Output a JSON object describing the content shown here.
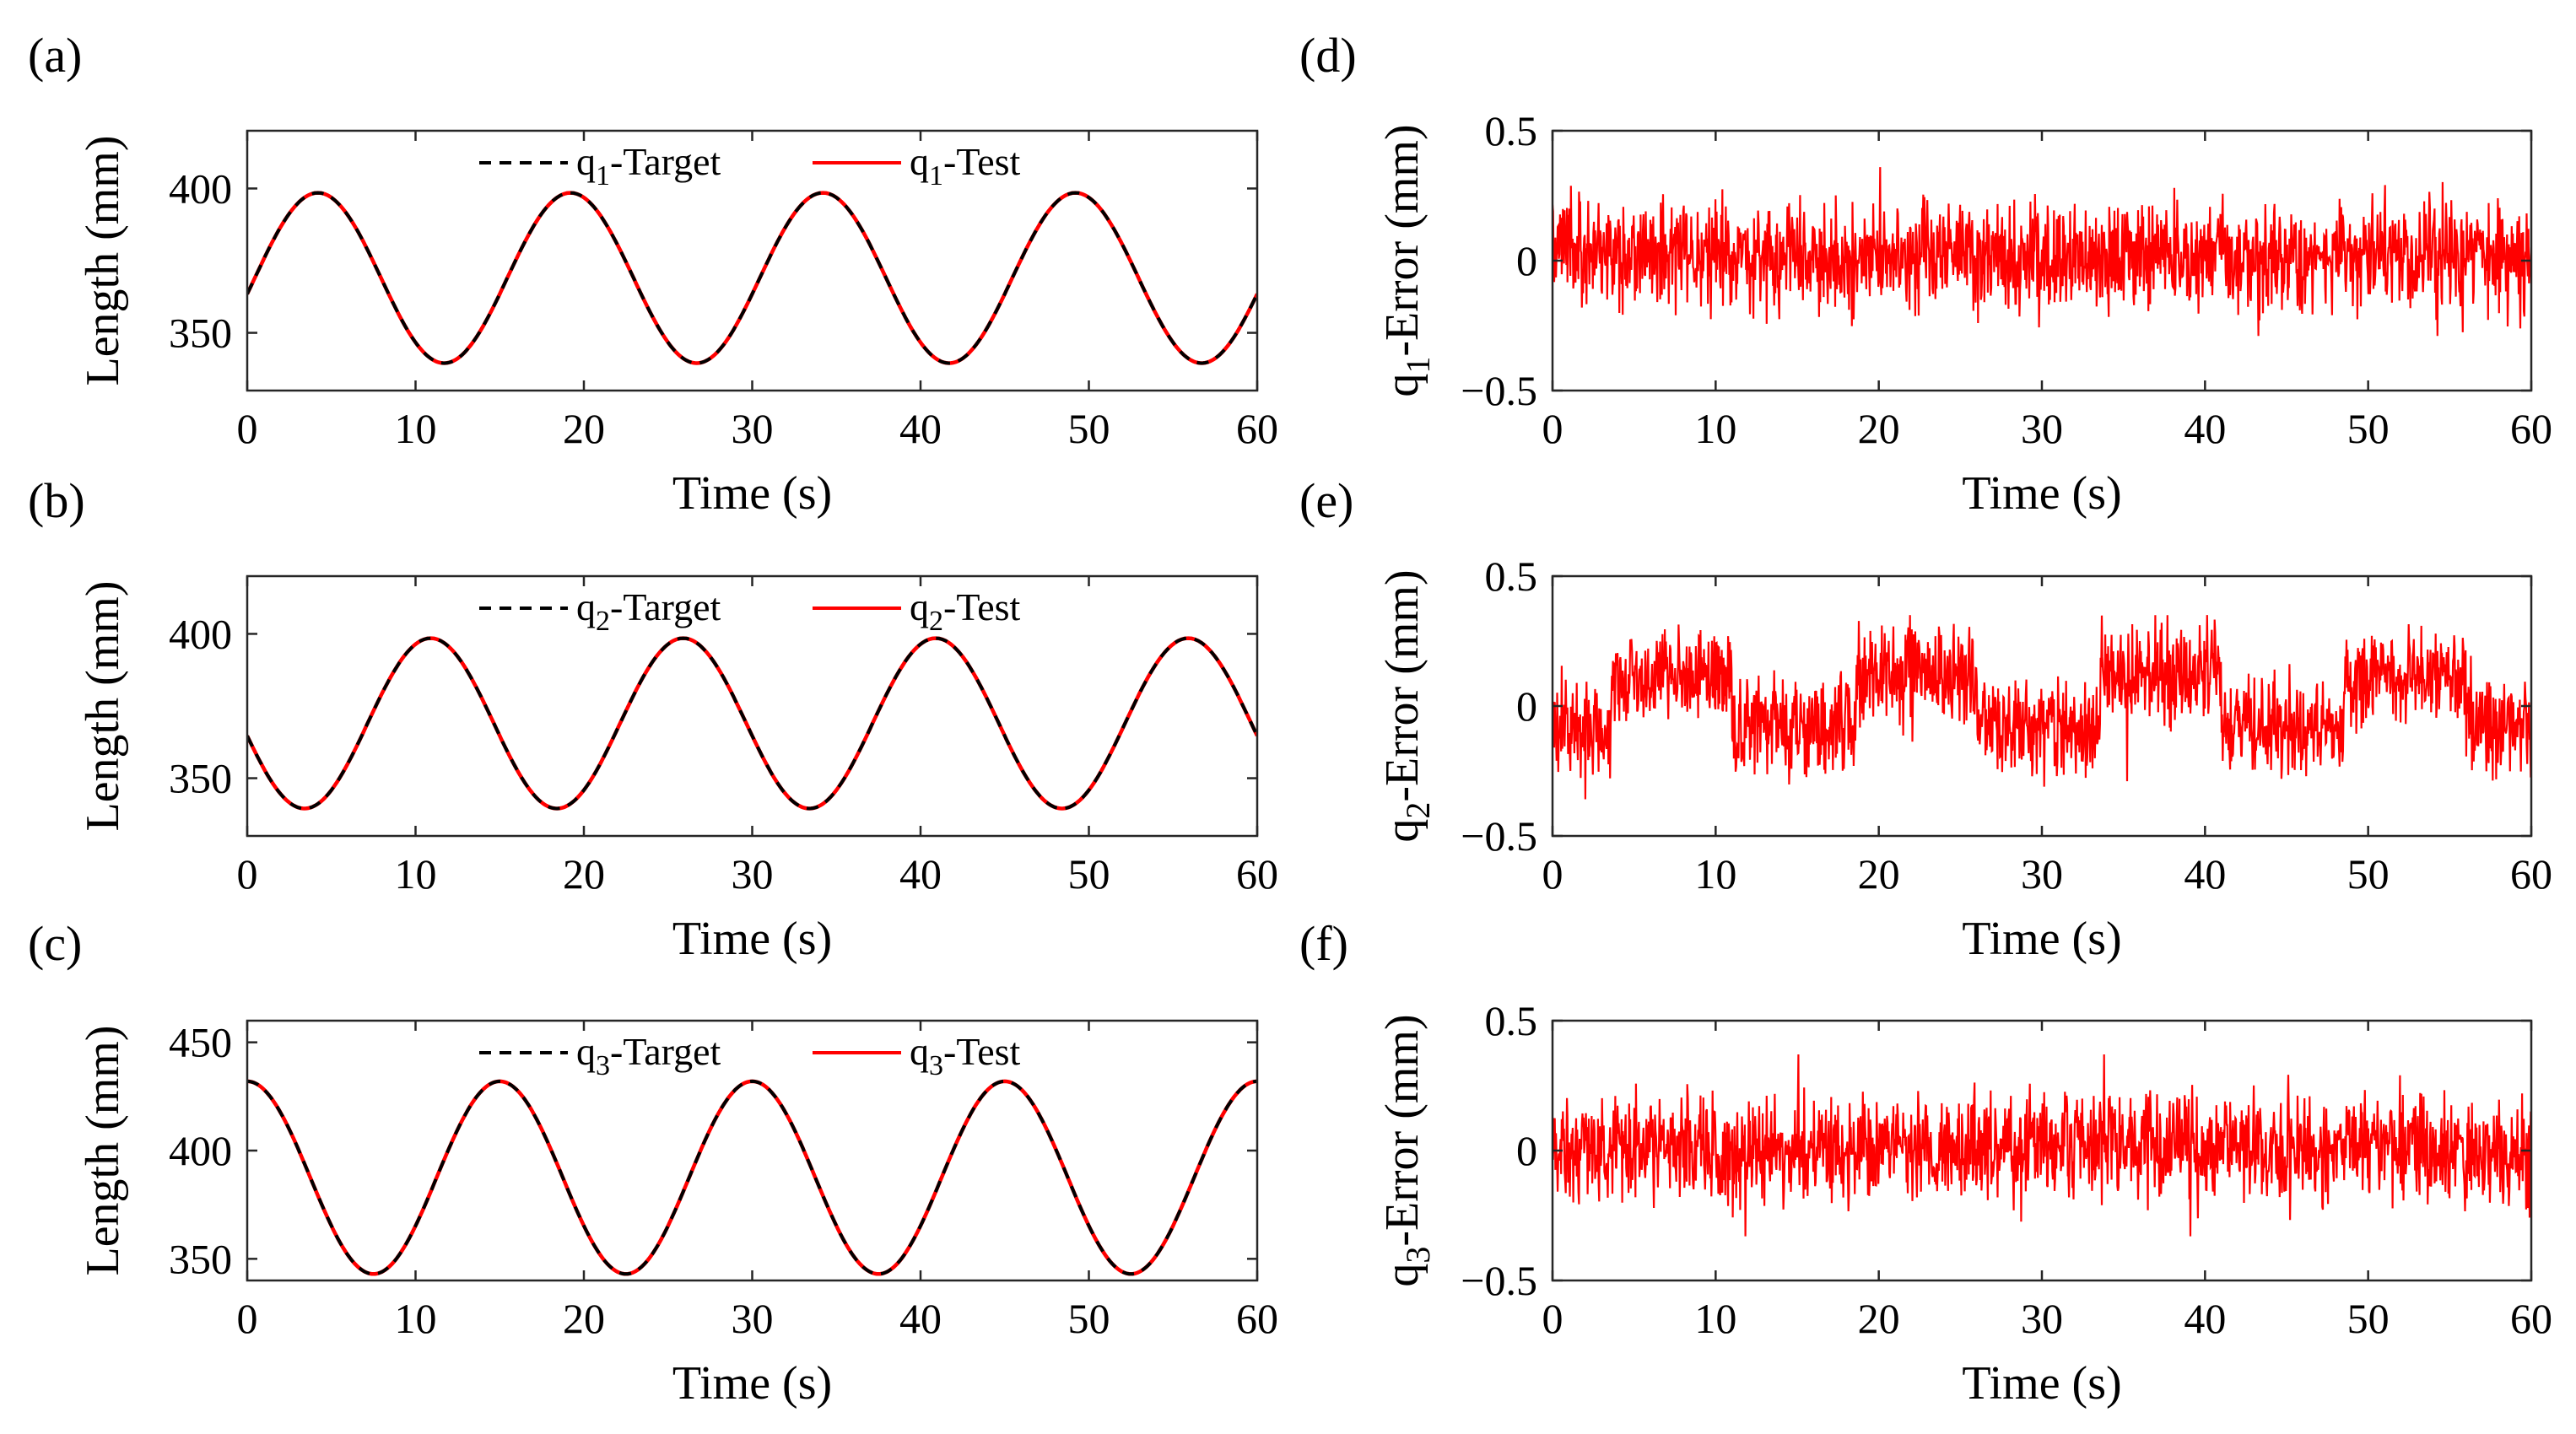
{
  "chart_data": [
    {
      "panel": "(a)",
      "type": "line",
      "xlabel": "Time (s)",
      "ylabel": "Length (mm)",
      "xlim": [
        0,
        60
      ],
      "ylim": [
        330,
        420
      ],
      "xticks": [
        0,
        10,
        20,
        30,
        40,
        50,
        60
      ],
      "yticks": [
        350,
        400
      ],
      "legend": {
        "position": "top-center",
        "entries": [
          {
            "name": "Target",
            "prefix": "q",
            "sub": "1",
            "style": "dashed",
            "color": "#000000"
          },
          {
            "name": "Test",
            "prefix": "q",
            "sub": "1",
            "style": "solid",
            "color": "#ff0000"
          }
        ]
      },
      "series_params": {
        "period": 15,
        "center": 369,
        "amplitude": 29.5,
        "peak_time": 4.2
      }
    },
    {
      "panel": "(b)",
      "type": "line",
      "xlabel": "Time (s)",
      "ylabel": "Length (mm)",
      "xlim": [
        0,
        60
      ],
      "ylim": [
        330,
        420
      ],
      "xticks": [
        0,
        10,
        20,
        30,
        40,
        50,
        60
      ],
      "yticks": [
        350,
        400
      ],
      "legend": {
        "position": "top-center",
        "entries": [
          {
            "name": "Target",
            "prefix": "q",
            "sub": "2",
            "style": "dashed",
            "color": "#000000"
          },
          {
            "name": "Test",
            "prefix": "q",
            "sub": "2",
            "style": "solid",
            "color": "#ff0000"
          }
        ]
      },
      "series_params": {
        "period": 15,
        "center": 369,
        "amplitude": 29.5,
        "peak_time": 10.9
      }
    },
    {
      "panel": "(c)",
      "type": "line",
      "xlabel": "Time (s)",
      "ylabel": "Length (mm)",
      "xlim": [
        0,
        60
      ],
      "ylim": [
        340,
        460
      ],
      "xticks": [
        0,
        10,
        20,
        30,
        40,
        50,
        60
      ],
      "yticks": [
        350,
        400,
        450
      ],
      "legend": {
        "position": "top-center",
        "entries": [
          {
            "name": "Target",
            "prefix": "q",
            "sub": "3",
            "style": "dashed",
            "color": "#000000"
          },
          {
            "name": "Test",
            "prefix": "q",
            "sub": "3",
            "style": "solid",
            "color": "#ff0000"
          }
        ]
      },
      "series_params": {
        "period": 15,
        "center": 387.5,
        "amplitude": 44.5,
        "peak_time": 0
      }
    },
    {
      "panel": "(d)",
      "type": "line",
      "xlabel": "Time (s)",
      "ylabel": "-Error (mm)",
      "ylabel_prefix": "q",
      "ylabel_sub": "1",
      "xlim": [
        0,
        60
      ],
      "ylim": [
        -0.5,
        0.5
      ],
      "xticks": [
        0,
        10,
        20,
        30,
        40,
        50,
        60
      ],
      "yticks": [
        -0.5,
        0,
        0.5
      ],
      "series_params": {
        "color": "#ff0000",
        "noise_amplitude": 0.1,
        "peak": 0.36,
        "trough": -0.29,
        "segment_boundaries": [
          4.2,
          11.7,
          19.2,
          26.7,
          34.2,
          41.7,
          49.2,
          56.7
        ],
        "segment_bias": [
          0.03,
          0.02,
          0.0,
          0.02,
          0.0,
          0.02,
          0.0,
          0.02,
          0.0
        ]
      }
    },
    {
      "panel": "(e)",
      "type": "line",
      "xlabel": "Time (s)",
      "ylabel": "-Error (mm)",
      "ylabel_prefix": "q",
      "ylabel_sub": "2",
      "xlim": [
        0,
        60
      ],
      "ylim": [
        -0.5,
        0.5
      ],
      "xticks": [
        0,
        10,
        20,
        30,
        40,
        50,
        60
      ],
      "yticks": [
        -0.5,
        0,
        0.5
      ],
      "series_params": {
        "color": "#ff0000",
        "noise_amplitude": 0.09,
        "peak": 0.35,
        "trough": -0.38,
        "segment_boundaries": [
          3.6,
          11.0,
          18.6,
          26.0,
          33.6,
          41.0,
          48.6,
          56.0
        ],
        "segment_bias": [
          -0.1,
          0.12,
          -0.08,
          0.12,
          -0.08,
          0.12,
          -0.08,
          0.12,
          -0.08
        ]
      }
    },
    {
      "panel": "(f)",
      "type": "line",
      "xlabel": "Time (s)",
      "ylabel": "-Error (mm)",
      "ylabel_prefix": "q",
      "ylabel_sub": "3",
      "xlim": [
        0,
        60
      ],
      "ylim": [
        -0.5,
        0.5
      ],
      "xticks": [
        0,
        10,
        20,
        30,
        40,
        50,
        60
      ],
      "yticks": [
        -0.5,
        0,
        0.5
      ],
      "series_params": {
        "color": "#ff0000",
        "noise_amplitude": 0.1,
        "peak": 0.37,
        "trough": -0.33,
        "segment_boundaries": [
          7.5,
          15.0,
          22.5,
          30.0,
          37.5,
          45.0,
          52.5
        ],
        "segment_bias": [
          0.01,
          -0.01,
          0.02,
          0.0,
          0.02,
          0.0,
          0.02,
          0.0
        ]
      }
    }
  ]
}
